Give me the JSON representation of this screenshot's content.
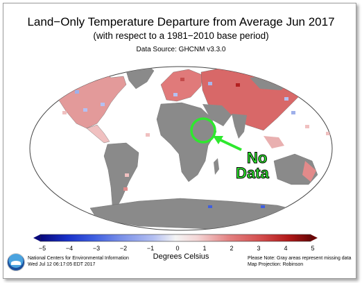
{
  "header": {
    "title": "Land−Only Temperature Departure from Average Jun 2017",
    "subtitle": "(with respect to a 1981−2010 base period)",
    "source": "Data Source: GHCNM v3.3.0"
  },
  "annotation": {
    "line1": "No",
    "line2": "Data",
    "color": "#2ee82e"
  },
  "colorbar": {
    "ticks": [
      "−5",
      "−4",
      "−3",
      "−2",
      "−1",
      "0",
      "1",
      "2",
      "3",
      "4",
      "5"
    ],
    "unit": "Degrees Celsius",
    "colors": [
      "#08087a",
      "#1830c8",
      "#3f5fe0",
      "#7a90e8",
      "#b4c0f2",
      "#dfe4f8",
      "#f4d6d6",
      "#eeb2b2",
      "#e38080",
      "#d24b4b",
      "#b01818",
      "#6a0606"
    ]
  },
  "footer": {
    "org": "National Centers for Environmental Information",
    "timestamp": "Wed Jul 12 06:17:05 EDT 2017",
    "note": "Please Note: Gray areas represent missing data",
    "projection": "Map Projection: Robinson"
  },
  "legend_colors": {
    "land_missing": "#8a8a8a",
    "ocean": "#ffffff"
  }
}
